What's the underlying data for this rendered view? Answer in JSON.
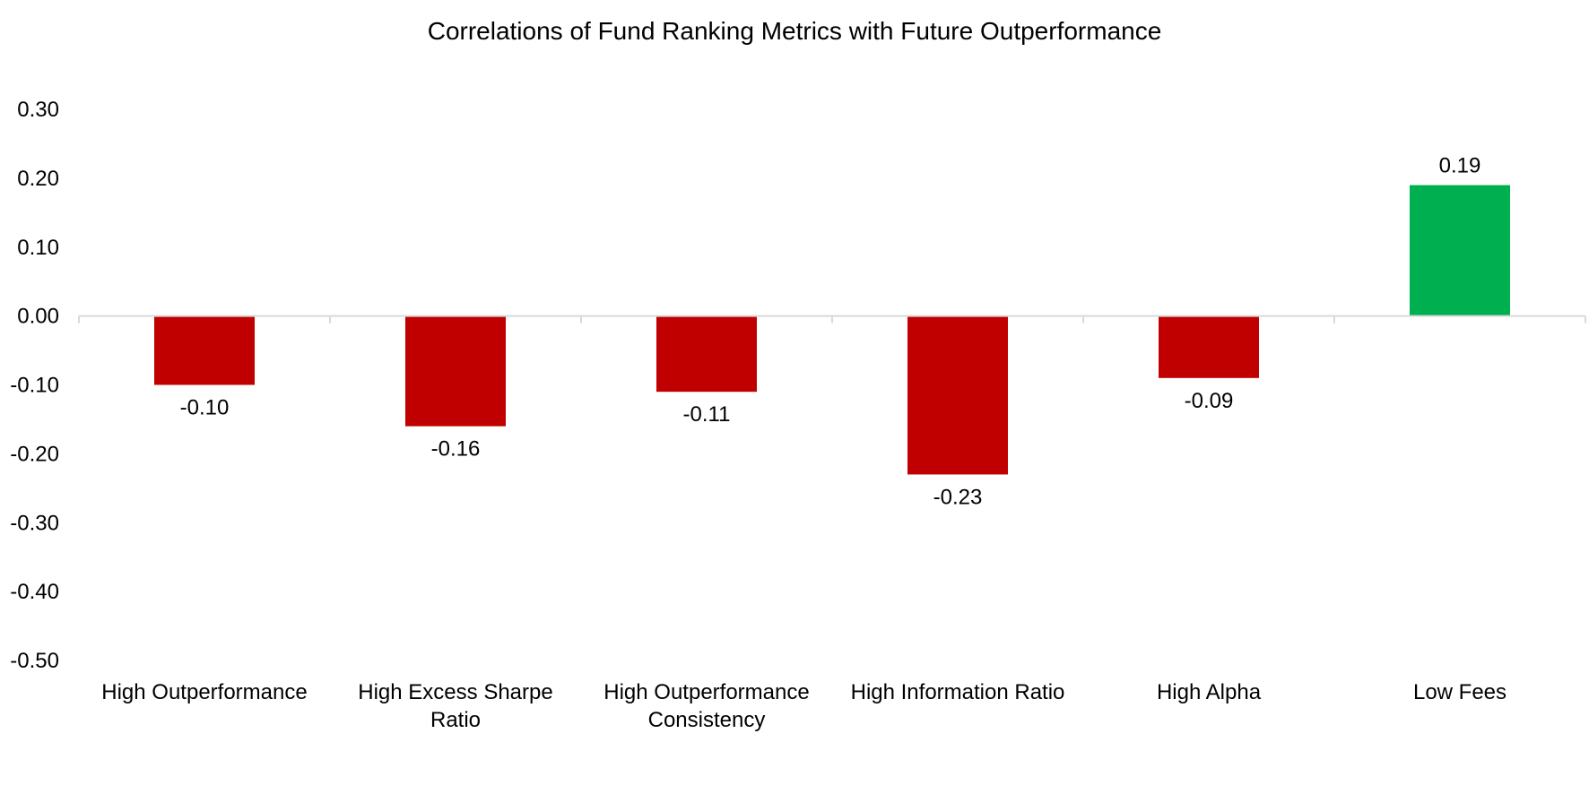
{
  "chart_data": {
    "type": "bar",
    "title": "Correlations of Fund Ranking Metrics with Future Outperformance",
    "xlabel": "",
    "ylabel": "",
    "categories": [
      [
        "High Outperformance"
      ],
      [
        "High Excess Sharpe",
        "Ratio"
      ],
      [
        "High Outperformance",
        "Consistency"
      ],
      [
        "High Information Ratio"
      ],
      [
        "High Alpha"
      ],
      [
        "Low Fees"
      ]
    ],
    "values": [
      -0.1,
      -0.16,
      -0.11,
      -0.23,
      -0.09,
      0.19
    ],
    "data_labels": [
      "-0.10",
      "-0.16",
      "-0.11",
      "-0.23",
      "-0.09",
      "0.19"
    ],
    "ylim": [
      -0.5,
      0.3
    ],
    "yticks": [
      0.3,
      0.2,
      0.1,
      0.0,
      -0.1,
      -0.2,
      -0.3,
      -0.4,
      -0.5
    ],
    "ytick_labels": [
      "0.30",
      "0.20",
      "0.10",
      "0.00",
      "-0.10",
      "-0.20",
      "-0.30",
      "-0.40",
      "-0.50"
    ],
    "grid": false,
    "legend": "none",
    "colors": {
      "negative": "#C00000",
      "positive": "#00B050",
      "axis": "#D9D9D9"
    }
  }
}
